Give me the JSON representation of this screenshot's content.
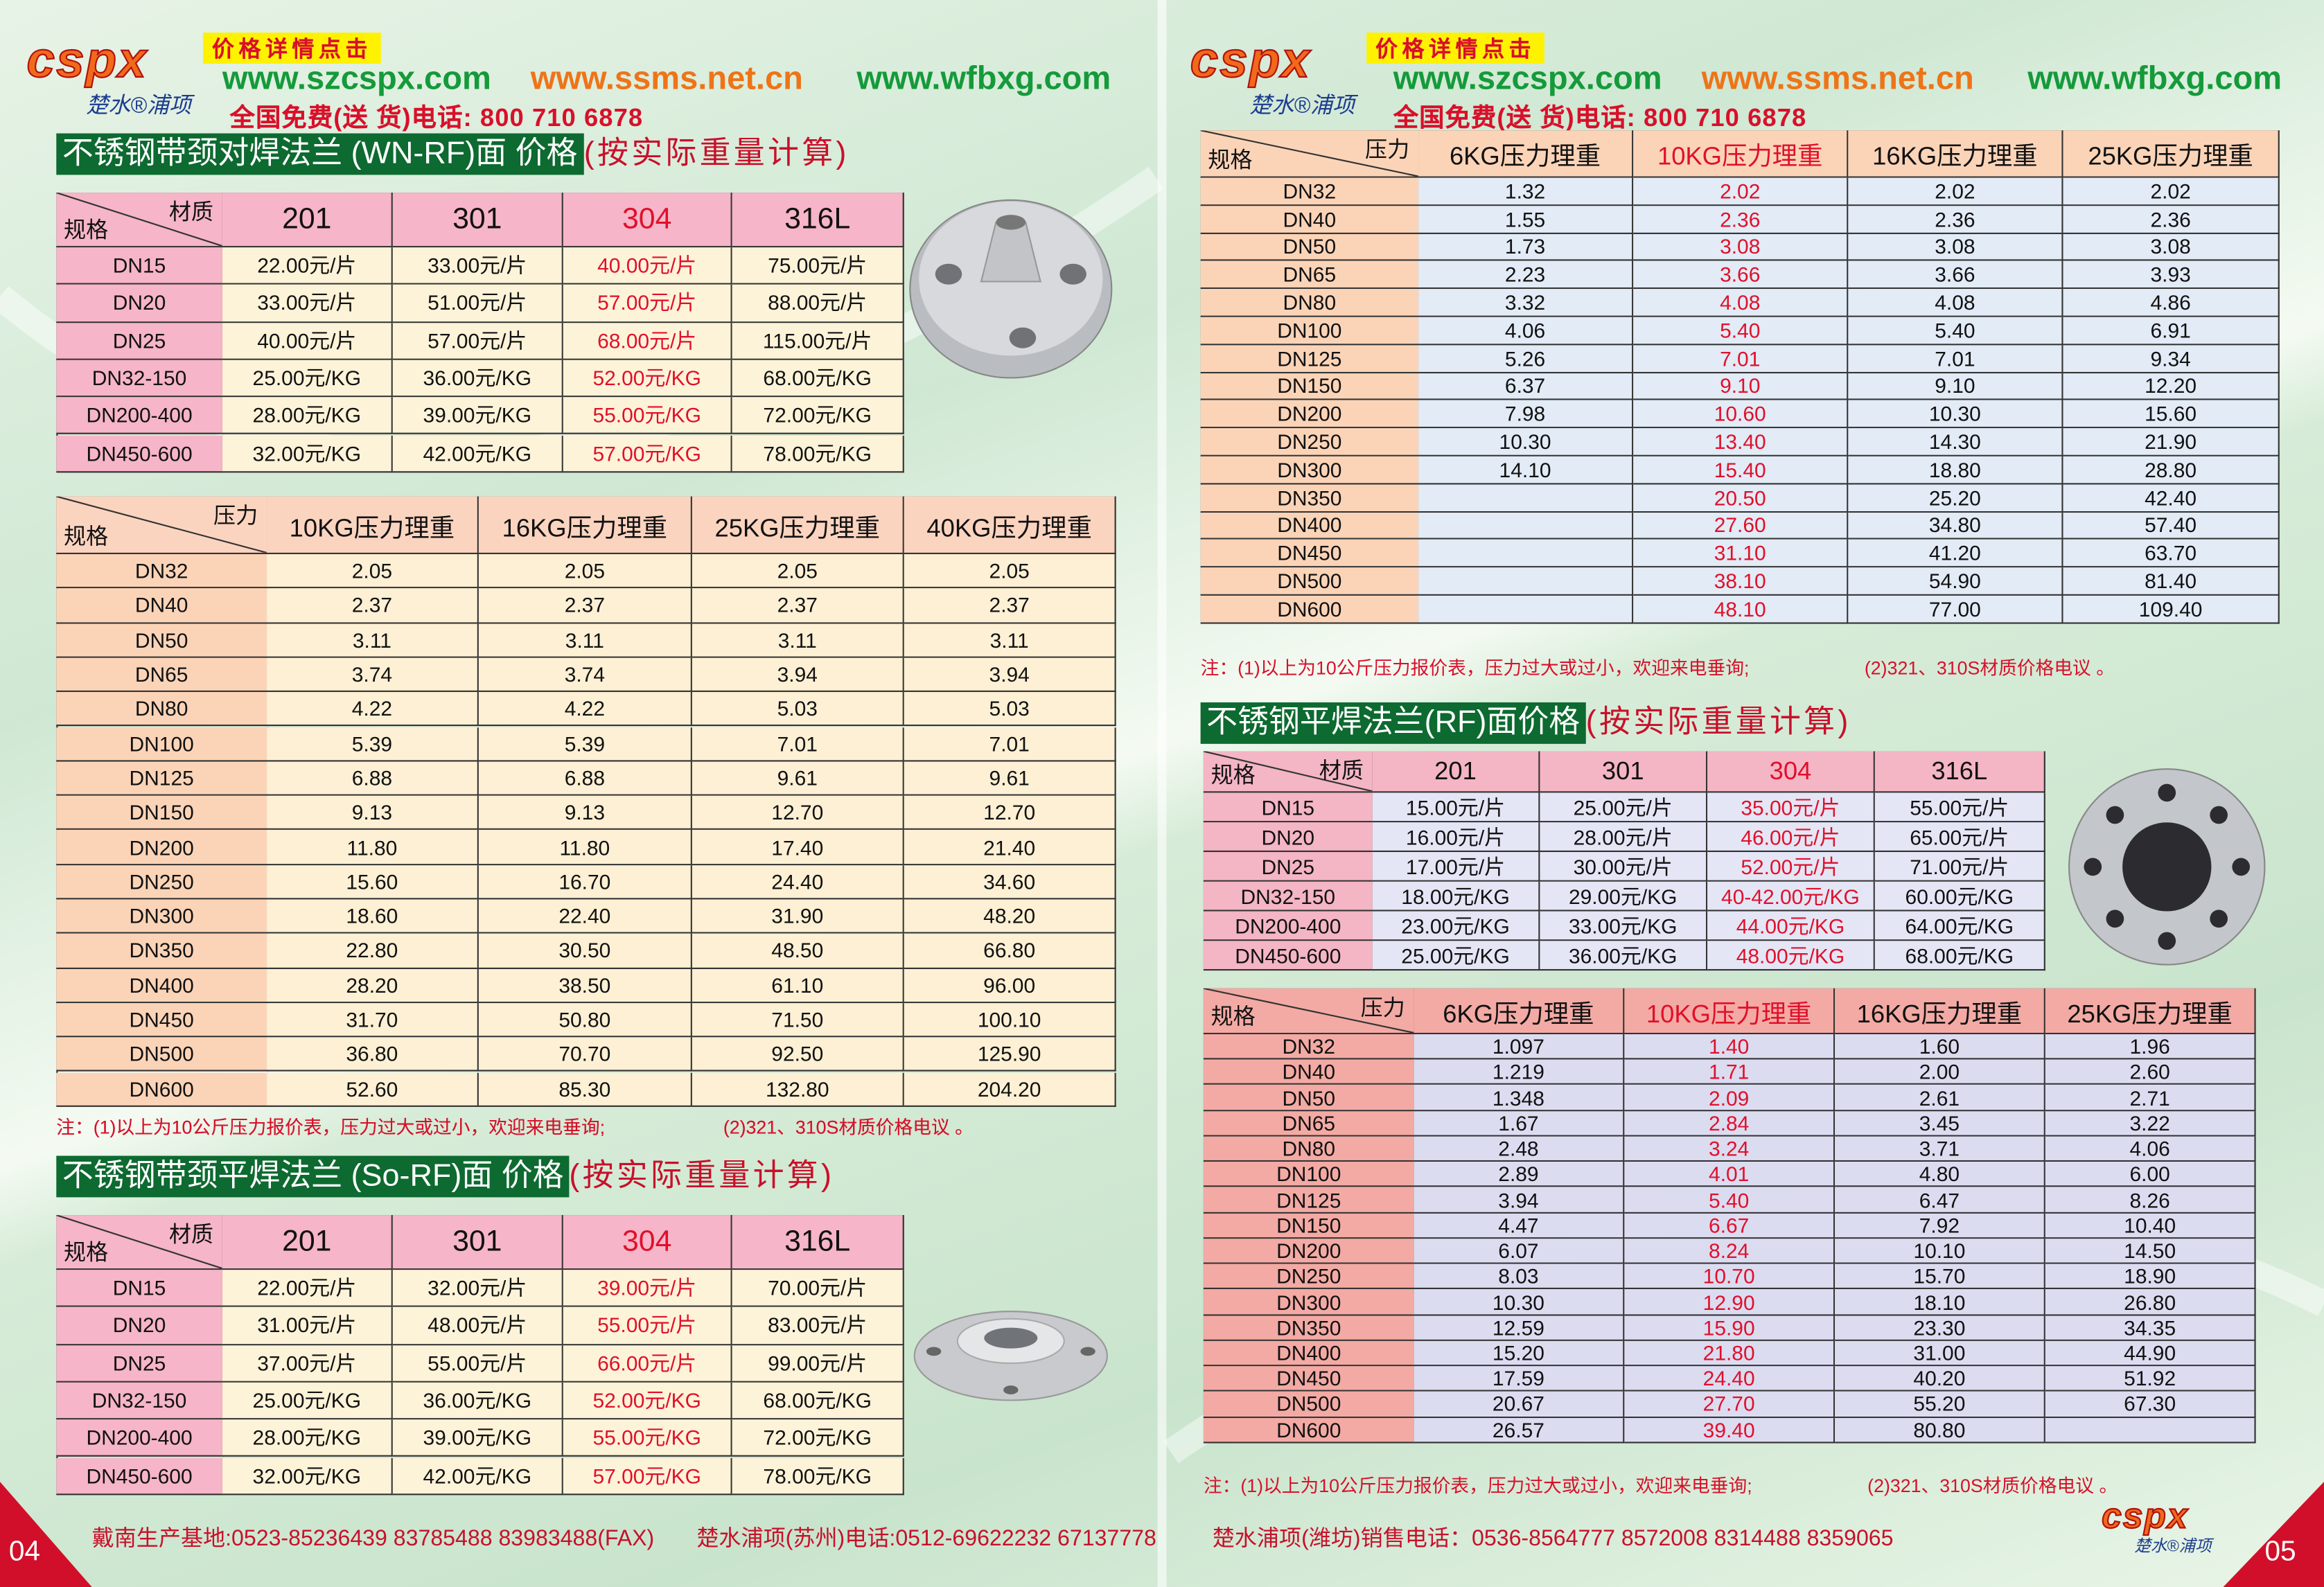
{
  "header": {
    "logo": "cspx",
    "logo_sub": "楚水®浦项",
    "link": "价格详情点击",
    "urls": [
      "www.szcspx.com",
      "www.ssms.net.cn",
      "www.wfbxg.com"
    ],
    "phone": "全国免费(送 货)电话: 800 710 6878"
  },
  "note": [
    "注：(1)以上为10公斤压力报价表，压力过大或过小，欢迎来电垂询;",
    "(2)321、310S材质价格电议 。"
  ],
  "tables": [
    {
      "title": "不锈钢带颈对焊法兰 (WN-RF)面 价格",
      "title_suffix": "(按实际重量计算)",
      "corner_top": "材质",
      "corner_bottom": "规格",
      "columns": [
        "201",
        "301",
        "304",
        "316L"
      ],
      "rows": [
        {
          "label": "DN15",
          "cells": [
            "22.00元/片",
            "33.00元/片",
            "40.00元/片",
            "75.00元/片"
          ]
        },
        {
          "label": "DN20",
          "cells": [
            "33.00元/片",
            "51.00元/片",
            "57.00元/片",
            "88.00元/片"
          ]
        },
        {
          "label": "DN25",
          "cells": [
            "40.00元/片",
            "57.00元/片",
            "68.00元/片",
            "115.00元/片"
          ]
        },
        {
          "label": "DN32-150",
          "cells": [
            "25.00元/KG",
            "36.00元/KG",
            "52.00元/KG",
            "68.00元/KG"
          ]
        },
        {
          "label": "DN200-400",
          "cells": [
            "28.00元/KG",
            "39.00元/KG",
            "55.00元/KG",
            "72.00元/KG"
          ]
        },
        {
          "label": "DN450-600",
          "cells": [
            "32.00元/KG",
            "42.00元/KG",
            "57.00元/KG",
            "78.00元/KG"
          ]
        }
      ]
    },
    {
      "corner_top": "压力",
      "corner_bottom": "规格",
      "columns": [
        "10KG压力理重",
        "16KG压力理重",
        "25KG压力理重",
        "40KG压力理重"
      ],
      "rows": [
        {
          "label": "DN32",
          "cells": [
            "2.05",
            "2.05",
            "2.05",
            "2.05"
          ]
        },
        {
          "label": "DN40",
          "cells": [
            "2.37",
            "2.37",
            "2.37",
            "2.37"
          ]
        },
        {
          "label": "DN50",
          "cells": [
            "3.11",
            "3.11",
            "3.11",
            "3.11"
          ]
        },
        {
          "label": "DN65",
          "cells": [
            "3.74",
            "3.74",
            "3.94",
            "3.94"
          ]
        },
        {
          "label": "DN80",
          "cells": [
            "4.22",
            "4.22",
            "5.03",
            "5.03"
          ]
        },
        {
          "label": "DN100",
          "cells": [
            "5.39",
            "5.39",
            "7.01",
            "7.01"
          ]
        },
        {
          "label": "DN125",
          "cells": [
            "6.88",
            "6.88",
            "9.61",
            "9.61"
          ]
        },
        {
          "label": "DN150",
          "cells": [
            "9.13",
            "9.13",
            "12.70",
            "12.70"
          ]
        },
        {
          "label": "DN200",
          "cells": [
            "11.80",
            "11.80",
            "17.40",
            "21.40"
          ]
        },
        {
          "label": "DN250",
          "cells": [
            "15.60",
            "16.70",
            "24.40",
            "34.60"
          ]
        },
        {
          "label": "DN300",
          "cells": [
            "18.60",
            "22.40",
            "31.90",
            "48.20"
          ]
        },
        {
          "label": "DN350",
          "cells": [
            "22.80",
            "30.50",
            "48.50",
            "66.80"
          ]
        },
        {
          "label": "DN400",
          "cells": [
            "28.20",
            "38.50",
            "61.10",
            "96.00"
          ]
        },
        {
          "label": "DN450",
          "cells": [
            "31.70",
            "50.80",
            "71.50",
            "100.10"
          ]
        },
        {
          "label": "DN500",
          "cells": [
            "36.80",
            "70.70",
            "92.50",
            "125.90"
          ]
        },
        {
          "label": "DN600",
          "cells": [
            "52.60",
            "85.30",
            "132.80",
            "204.20"
          ]
        }
      ]
    },
    {
      "title": "不锈钢带颈平焊法兰 (So-RF)面 价格",
      "title_suffix": "(按实际重量计算)",
      "corner_top": "材质",
      "corner_bottom": "规格",
      "columns": [
        "201",
        "301",
        "304",
        "316L"
      ],
      "rows": [
        {
          "label": "DN15",
          "cells": [
            "22.00元/片",
            "32.00元/片",
            "39.00元/片",
            "70.00元/片"
          ]
        },
        {
          "label": "DN20",
          "cells": [
            "31.00元/片",
            "48.00元/片",
            "55.00元/片",
            "83.00元/片"
          ]
        },
        {
          "label": "DN25",
          "cells": [
            "37.00元/片",
            "55.00元/片",
            "66.00元/片",
            "99.00元/片"
          ]
        },
        {
          "label": "DN32-150",
          "cells": [
            "25.00元/KG",
            "36.00元/KG",
            "52.00元/KG",
            "68.00元/KG"
          ]
        },
        {
          "label": "DN200-400",
          "cells": [
            "28.00元/KG",
            "39.00元/KG",
            "55.00元/KG",
            "72.00元/KG"
          ]
        },
        {
          "label": "DN450-600",
          "cells": [
            "32.00元/KG",
            "42.00元/KG",
            "57.00元/KG",
            "78.00元/KG"
          ]
        }
      ]
    },
    {
      "corner_top": "压力",
      "corner_bottom": "规格",
      "columns": [
        "6KG压力理重",
        "10KG压力理重",
        "16KG压力理重",
        "25KG压力理重"
      ],
      "rows": [
        {
          "label": "DN32",
          "cells": [
            "1.32",
            "2.02",
            "2.02",
            "2.02"
          ]
        },
        {
          "label": "DN40",
          "cells": [
            "1.55",
            "2.36",
            "2.36",
            "2.36"
          ]
        },
        {
          "label": "DN50",
          "cells": [
            "1.73",
            "3.08",
            "3.08",
            "3.08"
          ]
        },
        {
          "label": "DN65",
          "cells": [
            "2.23",
            "3.66",
            "3.66",
            "3.93"
          ]
        },
        {
          "label": "DN80",
          "cells": [
            "3.32",
            "4.08",
            "4.08",
            "4.86"
          ]
        },
        {
          "label": "DN100",
          "cells": [
            "4.06",
            "5.40",
            "5.40",
            "6.91"
          ]
        },
        {
          "label": "DN125",
          "cells": [
            "5.26",
            "7.01",
            "7.01",
            "9.34"
          ]
        },
        {
          "label": "DN150",
          "cells": [
            "6.37",
            "9.10",
            "9.10",
            "12.20"
          ]
        },
        {
          "label": "DN200",
          "cells": [
            "7.98",
            "10.60",
            "10.30",
            "15.60"
          ]
        },
        {
          "label": "DN250",
          "cells": [
            "10.30",
            "13.40",
            "14.30",
            "21.90"
          ]
        },
        {
          "label": "DN300",
          "cells": [
            "14.10",
            "15.40",
            "18.80",
            "28.80"
          ]
        },
        {
          "label": "DN350",
          "cells": [
            null,
            "20.50",
            "25.20",
            "42.40"
          ]
        },
        {
          "label": "DN400",
          "cells": [
            null,
            "27.60",
            "34.80",
            "57.40"
          ]
        },
        {
          "label": "DN450",
          "cells": [
            null,
            "31.10",
            "41.20",
            "63.70"
          ]
        },
        {
          "label": "DN500",
          "cells": [
            null,
            "38.10",
            "54.90",
            "81.40"
          ]
        },
        {
          "label": "DN600",
          "cells": [
            null,
            "48.10",
            "77.00",
            "109.40"
          ]
        }
      ]
    },
    {
      "title": "不锈钢平焊法兰(RF)面价格",
      "title_suffix": "(按实际重量计算)",
      "corner_top": "材质",
      "corner_bottom": "规格",
      "columns": [
        "201",
        "301",
        "304",
        "316L"
      ],
      "rows": [
        {
          "label": "DN15",
          "cells": [
            "15.00元/片",
            "25.00元/片",
            "35.00元/片",
            "55.00元/片"
          ]
        },
        {
          "label": "DN20",
          "cells": [
            "16.00元/片",
            "28.00元/片",
            "46.00元/片",
            "65.00元/片"
          ]
        },
        {
          "label": "DN25",
          "cells": [
            "17.00元/片",
            "30.00元/片",
            "52.00元/片",
            "71.00元/片"
          ]
        },
        {
          "label": "DN32-150",
          "cells": [
            "18.00元/KG",
            "29.00元/KG",
            "40-42.00元/KG",
            "60.00元/KG"
          ]
        },
        {
          "label": "DN200-400",
          "cells": [
            "23.00元/KG",
            "33.00元/KG",
            "44.00元/KG",
            "64.00元/KG"
          ]
        },
        {
          "label": "DN450-600",
          "cells": [
            "25.00元/KG",
            "36.00元/KG",
            "48.00元/KG",
            "68.00元/KG"
          ]
        }
      ]
    },
    {
      "corner_top": "压力",
      "corner_bottom": "规格",
      "columns": [
        "6KG压力理重",
        "10KG压力理重",
        "16KG压力理重",
        "25KG压力理重"
      ],
      "rows": [
        {
          "label": "DN32",
          "cells": [
            "1.097",
            "1.40",
            "1.60",
            "1.96"
          ]
        },
        {
          "label": "DN40",
          "cells": [
            "1.219",
            "1.71",
            "2.00",
            "2.60"
          ]
        },
        {
          "label": "DN50",
          "cells": [
            "1.348",
            "2.09",
            "2.61",
            "2.71"
          ]
        },
        {
          "label": "DN65",
          "cells": [
            "1.67",
            "2.84",
            "3.45",
            "3.22"
          ]
        },
        {
          "label": "DN80",
          "cells": [
            "2.48",
            "3.24",
            "3.71",
            "4.06"
          ]
        },
        {
          "label": "DN100",
          "cells": [
            "2.89",
            "4.01",
            "4.80",
            "6.00"
          ]
        },
        {
          "label": "DN125",
          "cells": [
            "3.94",
            "5.40",
            "6.47",
            "8.26"
          ]
        },
        {
          "label": "DN150",
          "cells": [
            "4.47",
            "6.67",
            "7.92",
            "10.40"
          ]
        },
        {
          "label": "DN200",
          "cells": [
            "6.07",
            "8.24",
            "10.10",
            "14.50"
          ]
        },
        {
          "label": "DN250",
          "cells": [
            "8.03",
            "10.70",
            "15.70",
            "18.90"
          ]
        },
        {
          "label": "DN300",
          "cells": [
            "10.30",
            "12.90",
            "18.10",
            "26.80"
          ]
        },
        {
          "label": "DN350",
          "cells": [
            "12.59",
            "15.90",
            "23.30",
            "34.35"
          ]
        },
        {
          "label": "DN400",
          "cells": [
            "15.20",
            "21.80",
            "31.00",
            "44.90"
          ]
        },
        {
          "label": "DN450",
          "cells": [
            "17.59",
            "24.40",
            "40.20",
            "51.92"
          ]
        },
        {
          "label": "DN500",
          "cells": [
            "20.67",
            "27.70",
            "55.20",
            "67.30"
          ]
        },
        {
          "label": "DN600",
          "cells": [
            "26.57",
            "39.40",
            "80.80",
            null
          ]
        }
      ]
    }
  ],
  "footer_left": {
    "page": "04",
    "lines": [
      "戴南生产基地:0523-85236439 83785488 83983488(FAX)",
      "楚水浦项(苏州)电话:0512-69622232 67137778"
    ]
  },
  "footer_right": {
    "page": "05",
    "lines": [
      "楚水浦项(潍坊)销售电话：0536-8564777 8572008 8314488 8359065"
    ]
  }
}
